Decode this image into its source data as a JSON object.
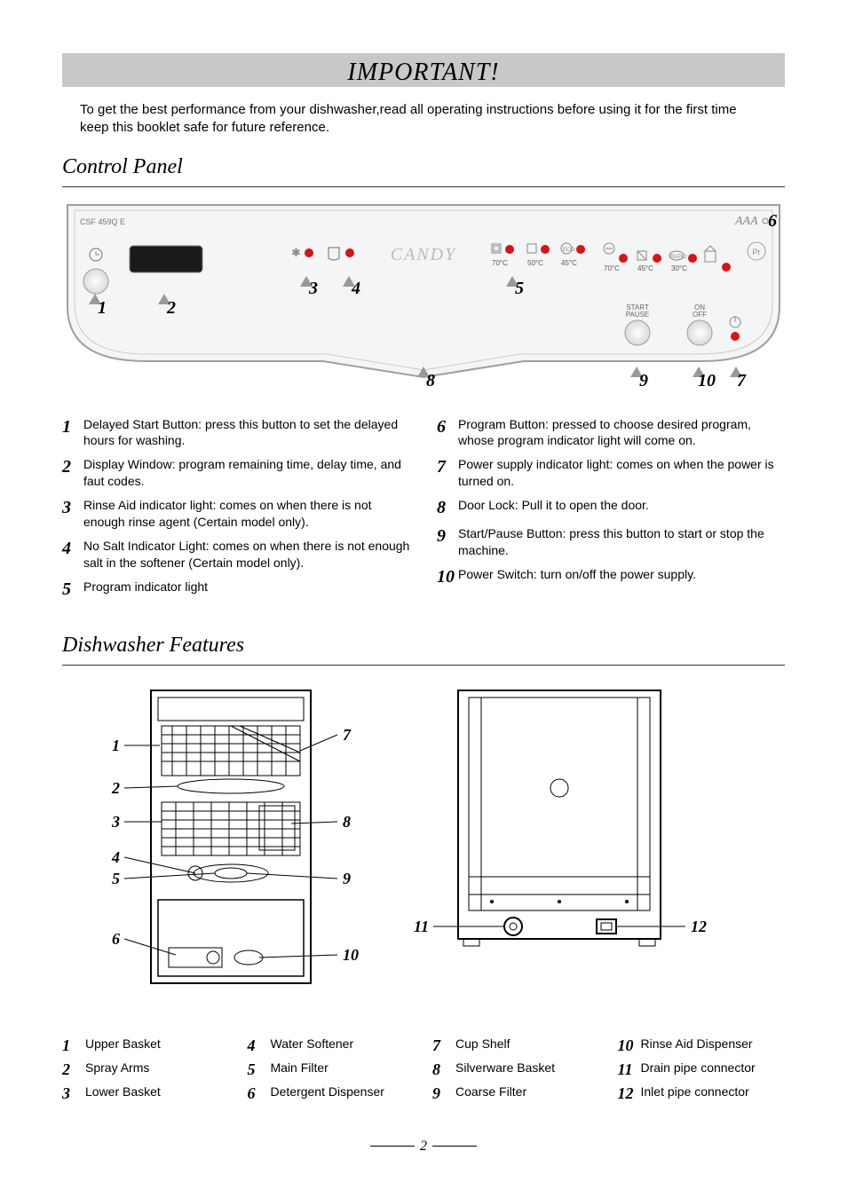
{
  "colors": {
    "banner_bg": "#c8c8c8",
    "text": "#000000",
    "panel_fill": "#f4f5f6",
    "panel_stroke": "#9aa0a4",
    "arrow": "#999999",
    "red": "#d01515",
    "grey_text": "#888888"
  },
  "important": {
    "title": "IMPORTANT!",
    "body": "To get the best performance from your dishwasher,read all operating instructions before using it for the first time keep this booklet safe for future reference."
  },
  "control_panel": {
    "title": "Control Panel",
    "model_label": "CSF 459Q E",
    "brand": "CANDY",
    "aaa_label": "AAA",
    "pr_label": "Pr",
    "start_pause_label": "START\nPAUSE",
    "on_off_label": "ON\nOFF",
    "temp_labels": [
      "70°C",
      "50°C",
      "45°C",
      "",
      "70°C",
      "45°C",
      "30°C",
      ""
    ],
    "callouts": [
      "1",
      "2",
      "3",
      "4",
      "5",
      "6",
      "7",
      "8",
      "9",
      "10"
    ],
    "descriptions_left": [
      {
        "n": "1",
        "t": "Delayed Start Button: press this button to set the delayed hours for washing."
      },
      {
        "n": "2",
        "t": "Display Window: program remaining time, delay time, and faut codes."
      },
      {
        "n": "3",
        "t": "Rinse Aid  indicator light: comes on when there is not enough rinse agent (Certain model only)."
      },
      {
        "n": "4",
        "t": "No Salt Indicator Light: comes on when there is not enough salt in the softener (Certain model only)."
      },
      {
        "n": "5",
        "t": "Program indicator light"
      }
    ],
    "descriptions_right": [
      {
        "n": "6",
        "t": "Program Button: pressed to choose desired program, whose program indicator light will come on."
      },
      {
        "n": "7",
        "t": "Power supply indicator light: comes on when the power is turned on."
      },
      {
        "n": "8",
        "t": "Door Lock: Pull it to open the door."
      },
      {
        "n": "9",
        "t": "Start/Pause Button: press this button to start or stop the machine."
      },
      {
        "n": "10",
        "t": "Power Switch: turn on/off the power supply."
      }
    ]
  },
  "features": {
    "title": "Dishwasher Features",
    "left_nums": [
      "1",
      "2",
      "3",
      "4",
      "5",
      "6",
      "7",
      "8",
      "9",
      "10"
    ],
    "right_nums": [
      "11",
      "12"
    ],
    "list": [
      [
        {
          "n": "1",
          "t": "Upper Basket"
        },
        {
          "n": "2",
          "t": "Spray Arms"
        },
        {
          "n": "3",
          "t": "Lower Basket"
        }
      ],
      [
        {
          "n": "4",
          "t": "Water Softener"
        },
        {
          "n": "5",
          "t": "Main Filter"
        },
        {
          "n": "6",
          "t": "Detergent Dispenser"
        }
      ],
      [
        {
          "n": "7",
          "t": "Cup Shelf"
        },
        {
          "n": "8",
          "t": "Silverware Basket"
        },
        {
          "n": "9",
          "t": "Coarse Filter"
        }
      ],
      [
        {
          "n": "10",
          "t": "Rinse Aid Dispenser"
        },
        {
          "n": "11",
          "t": "Drain pipe connector"
        },
        {
          "n": "12",
          "t": "Inlet pipe connector"
        }
      ]
    ]
  },
  "page_number": "2"
}
